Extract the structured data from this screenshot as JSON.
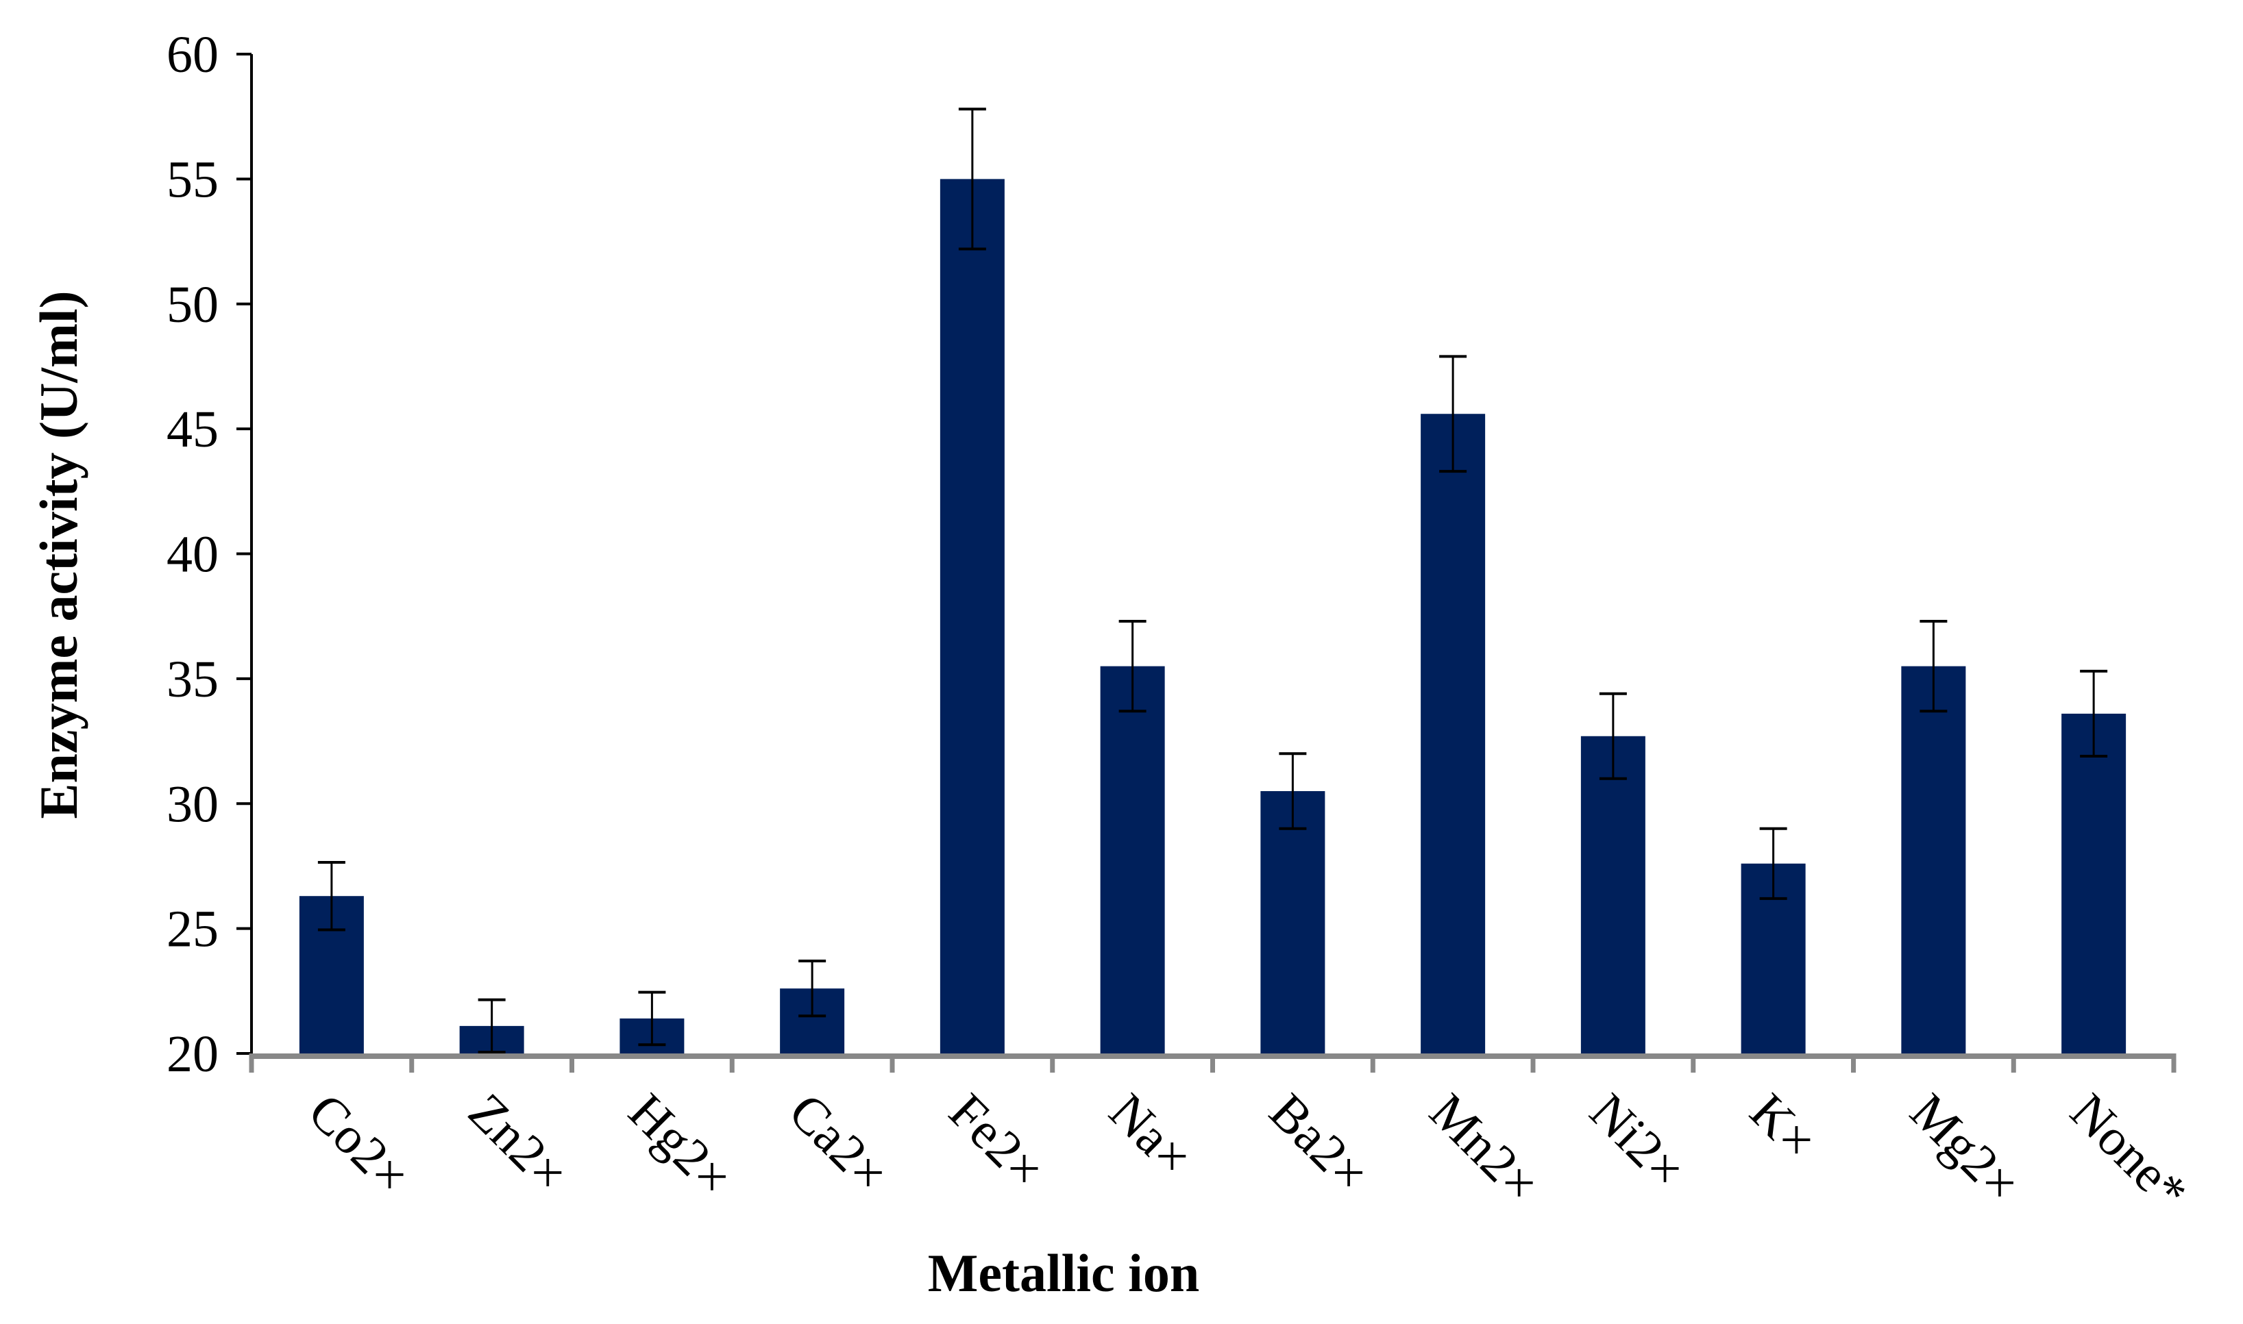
{
  "chart_data": {
    "type": "bar",
    "title": "",
    "xlabel": "Metallic ion",
    "ylabel": "Enzyme activity  (U/ml)",
    "ylim": [
      20,
      60
    ],
    "yticks": [
      20,
      25,
      30,
      35,
      40,
      45,
      50,
      55,
      60
    ],
    "grid": false,
    "legend": null,
    "bar_color": "#00205B",
    "categories": [
      "Co2×",
      "Zn2×",
      "Hg2×",
      "Ca2×",
      "Fe2×",
      "Na×",
      "Ba2×",
      "Mn2×",
      "Ni2×",
      "K×",
      "Mg2×",
      "None*"
    ],
    "values": [
      26.3,
      21.1,
      21.4,
      22.6,
      55.0,
      35.5,
      30.5,
      45.6,
      32.7,
      27.6,
      35.5,
      33.6
    ],
    "error": [
      1.35,
      1.05,
      1.05,
      1.1,
      2.8,
      1.8,
      1.5,
      2.3,
      1.7,
      1.4,
      1.8,
      1.7
    ]
  },
  "colors": {
    "bar": "#00205B",
    "error_bar": "#000000",
    "x_axis": "#888888",
    "y_axis": "#000000"
  }
}
